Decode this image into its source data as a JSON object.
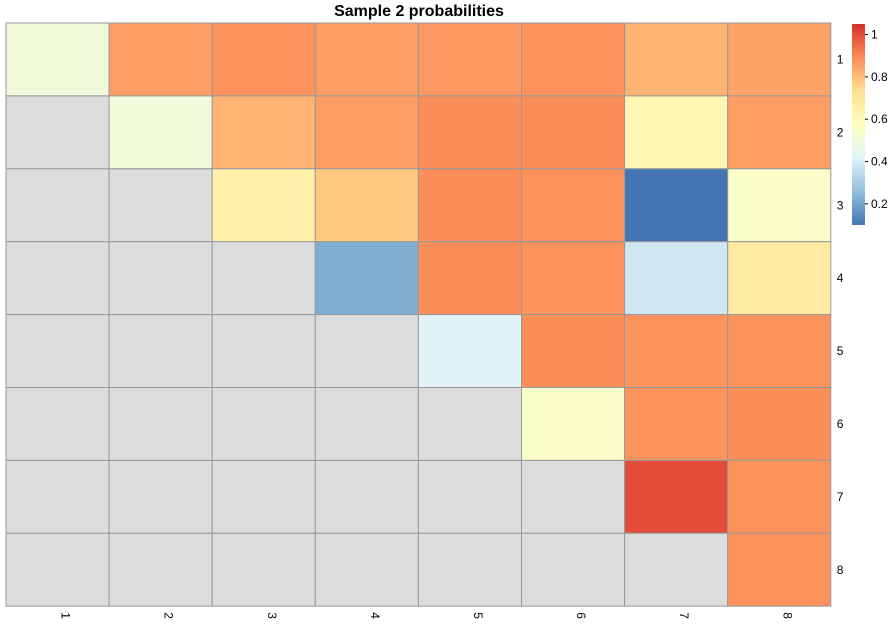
{
  "chart_data": {
    "type": "heatmap",
    "title": "Sample 2 probabilities",
    "xlabel": "",
    "ylabel": "",
    "row_labels": [
      "1",
      "2",
      "3",
      "4",
      "5",
      "6",
      "7",
      "8"
    ],
    "col_labels": [
      "1",
      "2",
      "3",
      "4",
      "5",
      "6",
      "7",
      "8"
    ],
    "values": [
      [
        0.5,
        0.86,
        0.88,
        0.86,
        0.87,
        0.88,
        0.82,
        0.85
      ],
      [
        null,
        0.5,
        0.82,
        0.86,
        0.89,
        0.89,
        0.62,
        0.86
      ],
      [
        null,
        null,
        0.65,
        0.78,
        0.89,
        0.88,
        0.1,
        0.55
      ],
      [
        null,
        null,
        null,
        0.22,
        0.89,
        0.88,
        0.38,
        0.68
      ],
      [
        null,
        null,
        null,
        null,
        0.42,
        0.89,
        0.88,
        0.88
      ],
      [
        null,
        null,
        null,
        null,
        null,
        0.55,
        0.88,
        0.89
      ],
      [
        null,
        null,
        null,
        null,
        null,
        null,
        1.0,
        0.88
      ],
      [
        null,
        null,
        null,
        null,
        null,
        null,
        null,
        0.88
      ]
    ],
    "missing_color": "#DCDCDC",
    "cell_border_color": "#999999",
    "color_scale": {
      "range": [
        0.1,
        1.05
      ],
      "stops": [
        "#4575B4",
        "#91BFDB",
        "#E0F3F8",
        "#FFFFBF",
        "#FEE090",
        "#FC8D59",
        "#D73027"
      ],
      "legend_ticks": [
        "0.2",
        "0.4",
        "0.6",
        "0.8",
        "1"
      ],
      "legend_tick_values": [
        0.2,
        0.4,
        0.6,
        0.8,
        1.0
      ]
    }
  }
}
